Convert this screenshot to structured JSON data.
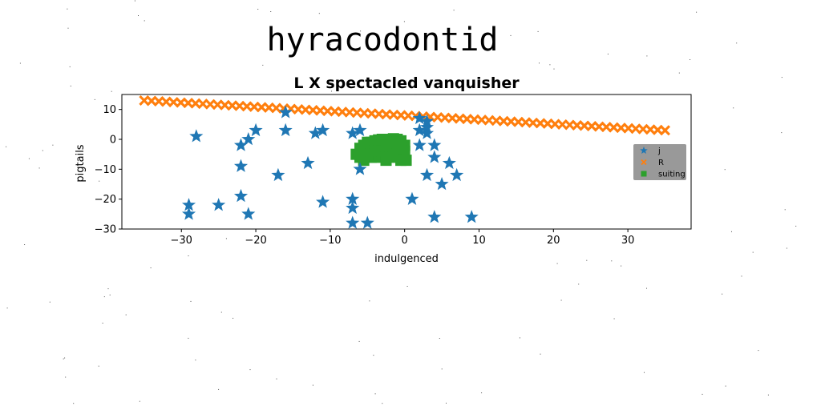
{
  "figure": {
    "suptitle": "hyracodontid"
  },
  "chart_data": {
    "type": "scatter",
    "title": "L X spectacled vanquisher",
    "xlabel": "indulgenced",
    "ylabel": "pigtails",
    "xlim": [
      -38,
      38.5
    ],
    "ylim": [
      -30,
      15
    ],
    "xticks": [
      -30,
      -20,
      -10,
      0,
      10,
      20,
      30
    ],
    "yticks": [
      -30,
      -20,
      -10,
      0,
      10
    ],
    "grid": false,
    "legend": {
      "position": "right",
      "background": "#999999"
    },
    "series": [
      {
        "name": "j",
        "marker": "star",
        "color": "#1f77b4",
        "x": [
          -28,
          -16,
          -21,
          -22,
          -20,
          -16,
          -12,
          -11,
          -7,
          -6,
          -22,
          -13,
          -17,
          -6,
          -22,
          -29,
          -29,
          -25,
          -21,
          -11,
          -7,
          -7,
          -7,
          -5,
          2,
          3,
          2,
          3,
          4,
          2,
          3,
          4,
          6,
          7,
          3,
          5,
          1,
          4,
          9
        ],
        "y": [
          1,
          9,
          0,
          -2,
          3,
          3,
          2,
          3,
          2,
          3,
          -9,
          -8,
          -12,
          -10,
          -19,
          -22,
          -25,
          -22,
          -25,
          -21,
          -20,
          -23,
          -28,
          -28,
          3,
          4,
          7,
          6,
          -2,
          -2,
          -12,
          -6,
          -8,
          -12,
          2,
          -15,
          -20,
          -26,
          -26
        ]
      },
      {
        "name": "R",
        "marker": "x",
        "color": "#ff7f0e",
        "x_range": [
          -35,
          35
        ],
        "y_range": [
          13,
          3
        ],
        "points": 72
      },
      {
        "name": "suiting",
        "marker": "square",
        "color": "#2ca02c",
        "x": [
          -6,
          -5.5,
          -5,
          -4.5,
          -4,
          -3.5,
          -3,
          -2.5,
          -2,
          -1.5,
          -1,
          -0.5,
          0,
          -6,
          -5.5,
          -5,
          -4.5,
          -4,
          -3.5,
          -3,
          -2.5,
          -2,
          -1.5,
          -1,
          -6,
          -5,
          -4,
          -3,
          -2,
          -1,
          0,
          -5.5,
          -4.5,
          -3.5,
          -2.5,
          -1.5,
          -0.5,
          -5,
          -4,
          -3,
          -2,
          -1,
          -2.5,
          -1.5,
          -6.5,
          -0.5,
          0.2
        ],
        "y": [
          -3,
          -2,
          -1,
          -1,
          -0.5,
          -0.2,
          0,
          0,
          0,
          0.2,
          0,
          -0.5,
          -2,
          -5,
          -4,
          -3,
          -4,
          -3,
          -2,
          -3,
          -2,
          -2,
          -1,
          -1,
          -6,
          -6,
          -5,
          -5,
          -5,
          -5,
          -4,
          -7,
          -6,
          -6,
          -7,
          -6,
          -7,
          -5,
          -4,
          -4,
          -3,
          -3,
          -6,
          -5,
          -5,
          -3,
          -7
        ]
      }
    ]
  }
}
